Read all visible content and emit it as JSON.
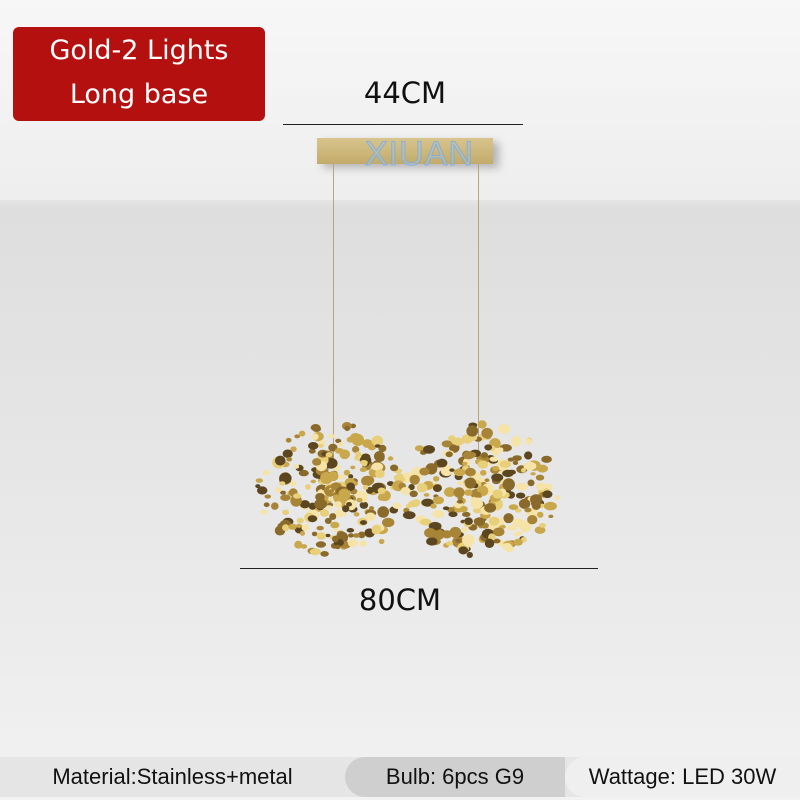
{
  "badge": {
    "line1": "Gold-2 Lights",
    "line2": "Long base",
    "color": "#b3100f"
  },
  "dimensions": {
    "top": "44CM",
    "bottom": "80CM"
  },
  "watermark": "XIUAN",
  "specs": {
    "material": "Material:Stainless+metal",
    "bulb": "Bulb: 6pcs G9",
    "wattage": "Wattage: LED 30W"
  },
  "colors": {
    "gold": "#c9a84c"
  }
}
